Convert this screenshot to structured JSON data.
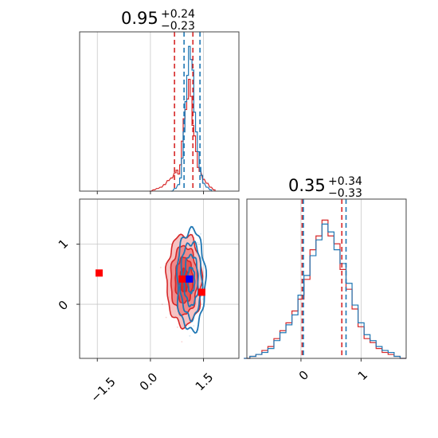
{
  "colors": {
    "series_a": "#d62728",
    "series_b": "#1f77b4",
    "marker_red": "#ff0000",
    "marker_blue": "#0000ff"
  },
  "chart_data": [
    {
      "type": "histogram",
      "panel": "top-left",
      "title": {
        "value": "0.95",
        "plus": "+0.24",
        "minus": "−0.23"
      },
      "x_range": [
        -2.0,
        2.5
      ],
      "grid": true,
      "quantile_lines": {
        "red": [
          0.68,
          1.2
        ],
        "blue": [
          0.95,
          1.4
        ]
      },
      "series": [
        {
          "color": "#d62728",
          "x": [
            0.0,
            0.1,
            0.2,
            0.3,
            0.4,
            0.5,
            0.6,
            0.7,
            0.75,
            0.8,
            0.85,
            0.9,
            0.95,
            1.0,
            1.05,
            1.1,
            1.15,
            1.2,
            1.25,
            1.3,
            1.35,
            1.4,
            1.5,
            1.6,
            1.7,
            1.8
          ],
          "counts": [
            0,
            1,
            2,
            3,
            5,
            8,
            10,
            14,
            16,
            13,
            20,
            38,
            55,
            62,
            70,
            85,
            72,
            50,
            42,
            30,
            18,
            15,
            9,
            6,
            3,
            1
          ]
        },
        {
          "color": "#1f77b4",
          "x": [
            0.6,
            0.7,
            0.8,
            0.85,
            0.9,
            0.95,
            1.0,
            1.05,
            1.1,
            1.15,
            1.2,
            1.25,
            1.3,
            1.35,
            1.4,
            1.45,
            1.5,
            1.6,
            1.7
          ],
          "counts": [
            0,
            2,
            5,
            10,
            25,
            45,
            68,
            88,
            110,
            100,
            92,
            60,
            45,
            30,
            18,
            12,
            6,
            3,
            1
          ]
        }
      ]
    },
    {
      "type": "contour",
      "panel": "bottom-left",
      "x_ticks": [
        "−1.5",
        "0.0",
        "1.5"
      ],
      "x_tick_values": [
        -1.5,
        0.0,
        1.5
      ],
      "y_ticks": [
        "1",
        "0"
      ],
      "y_tick_values": [
        1,
        0
      ],
      "x_range": [
        -2.0,
        2.5
      ],
      "y_range": [
        -0.9,
        1.75
      ],
      "grid": true,
      "series": [
        {
          "color": "#d62728",
          "center": [
            0.95,
            0.4
          ],
          "sigma": [
            0.25,
            0.38
          ]
        },
        {
          "color": "#1f77b4",
          "center": [
            1.15,
            0.4
          ],
          "sigma": [
            0.2,
            0.42
          ]
        }
      ],
      "markers": [
        {
          "color": "#ff0000",
          "x": -1.45,
          "y": 0.52
        },
        {
          "color": "#ff0000",
          "x": 0.9,
          "y": 0.42
        },
        {
          "color": "#ff0000",
          "x": 1.45,
          "y": 0.2
        },
        {
          "color": "#0000ff",
          "x": 1.1,
          "y": 0.42
        }
      ]
    },
    {
      "type": "histogram",
      "panel": "bottom-right",
      "title": {
        "value": "0.35",
        "plus": "+0.34",
        "minus": "−0.33"
      },
      "x_ticks": [
        "0",
        "1"
      ],
      "x_tick_values": [
        0,
        1
      ],
      "x_range": [
        -0.9,
        1.75
      ],
      "grid": true,
      "quantile_lines": {
        "red": [
          0.02,
          0.68
        ],
        "blue": [
          0.02,
          0.73
        ]
      },
      "series": [
        {
          "color": "#d62728",
          "x": [
            -0.9,
            -0.8,
            -0.7,
            -0.6,
            -0.5,
            -0.4,
            -0.3,
            -0.2,
            -0.1,
            0.0,
            0.1,
            0.2,
            0.3,
            0.4,
            0.5,
            0.6,
            0.7,
            0.8,
            0.9,
            1.0,
            1.1,
            1.2,
            1.3,
            1.4,
            1.5,
            1.6,
            1.7
          ],
          "counts": [
            0,
            1,
            2,
            4,
            6,
            10,
            14,
            18,
            24,
            30,
            40,
            55,
            62,
            70,
            62,
            58,
            45,
            35,
            25,
            16,
            10,
            8,
            5,
            3,
            2,
            1,
            0
          ]
        },
        {
          "color": "#1f77b4",
          "x": [
            -0.9,
            -0.8,
            -0.7,
            -0.6,
            -0.5,
            -0.4,
            -0.3,
            -0.2,
            -0.1,
            0.0,
            0.1,
            0.2,
            0.3,
            0.4,
            0.5,
            0.6,
            0.7,
            0.8,
            0.9,
            1.0,
            1.1,
            1.2,
            1.3,
            1.4,
            1.5,
            1.6,
            1.7
          ],
          "counts": [
            0,
            1,
            2,
            3,
            5,
            9,
            13,
            17,
            22,
            32,
            42,
            52,
            60,
            68,
            64,
            55,
            48,
            38,
            27,
            18,
            12,
            9,
            6,
            4,
            3,
            1,
            0
          ]
        }
      ]
    }
  ]
}
